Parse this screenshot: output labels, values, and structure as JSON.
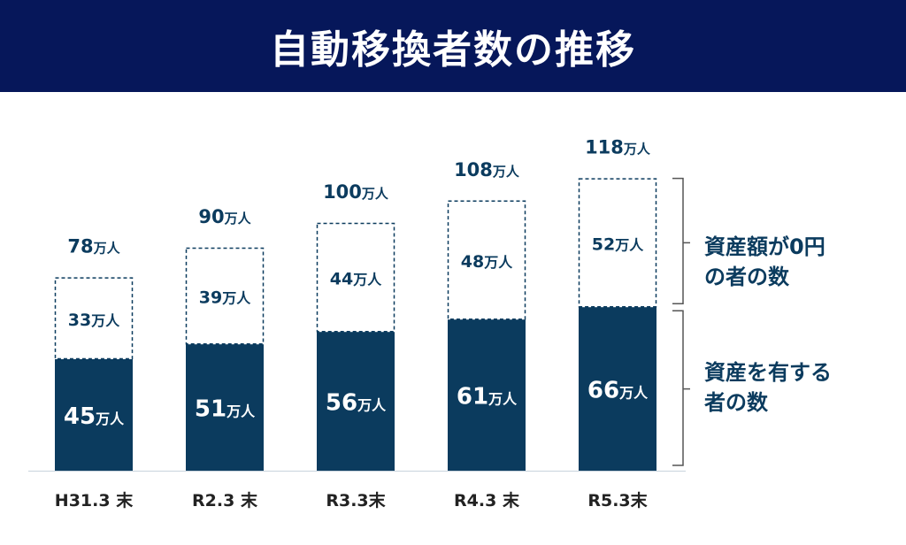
{
  "colors": {
    "header_bg": "#06175a",
    "bar_fill": "#0b3b5e",
    "text_dark": "#0b3b5e",
    "text_white": "#ffffff",
    "axis": "#c8d3dc"
  },
  "legend": {
    "zero_assets_line1": "資産額が0円",
    "zero_assets_line2": "の者の数",
    "with_assets_line1": "資産を有する",
    "with_assets_line2": "者の数"
  },
  "chart_data": {
    "type": "bar",
    "stacked": true,
    "title": "自動移換者数の推移",
    "unit": "万人",
    "categories": [
      "H31.3 末",
      "R2.3 末",
      "R3.3末",
      "R4.3 末",
      "R5.3末"
    ],
    "series": [
      {
        "name": "資産を有する者の数",
        "values": [
          45,
          51,
          56,
          61,
          66
        ],
        "style": "solid"
      },
      {
        "name": "資産額が0円の者の数",
        "values": [
          33,
          39,
          44,
          48,
          52
        ],
        "style": "dashed"
      }
    ],
    "totals": [
      78,
      90,
      100,
      108,
      118
    ],
    "legend_position": "right"
  }
}
